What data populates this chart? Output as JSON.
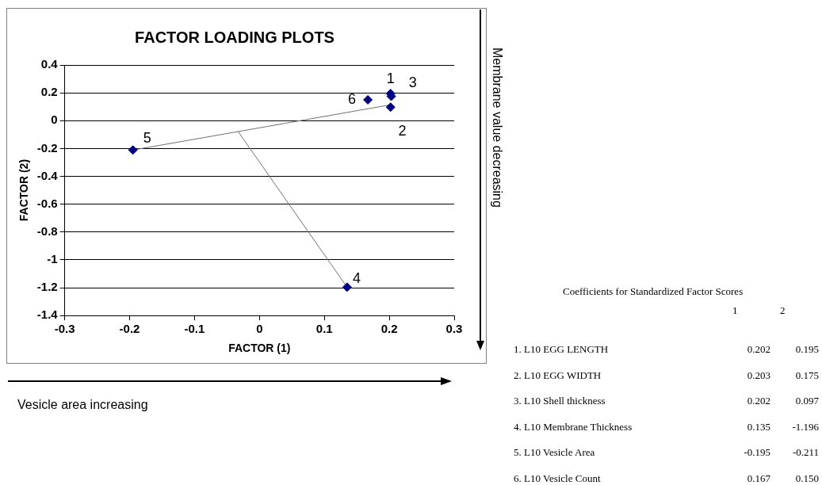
{
  "chart_data": {
    "type": "scatter",
    "title": "FACTOR LOADING PLOTS",
    "xlabel": "FACTOR (1)",
    "ylabel": "FACTOR (2)",
    "xlim": [
      -0.3,
      0.3
    ],
    "xticks": [
      -0.3,
      -0.2,
      -0.1,
      0,
      0.1,
      0.2,
      0.3
    ],
    "ylim": [
      -1.4,
      0.4
    ],
    "yticks": [
      -1.4,
      -1.2,
      -1,
      -0.8,
      -0.6,
      -0.4,
      -0.2,
      0,
      0.2,
      0.4
    ],
    "grid": "y",
    "legend": false,
    "marker": "diamond",
    "series": [
      {
        "color": "#000080",
        "x": [
          0.202,
          0.203,
          0.202,
          0.135,
          -0.195,
          0.167
        ],
        "values": [
          0.195,
          0.175,
          0.097,
          -1.196,
          -0.211,
          0.15
        ]
      },
      {
        "type": "line",
        "color": "#707070",
        "marker": "none",
        "x": [
          -0.195,
          0.202
        ],
        "values": [
          -0.211,
          0.114
        ]
      },
      {
        "type": "line",
        "color": "#707070",
        "marker": "none",
        "x": [
          -0.033,
          0.135
        ],
        "values": [
          -0.077,
          -1.196
        ]
      }
    ],
    "annotations": [
      {
        "text": "1",
        "x": 0.202,
        "y": 0.195
      },
      {
        "text": "2",
        "x": 0.203,
        "y": 0.097
      },
      {
        "text": "3",
        "x": 0.202,
        "y": 0.175
      },
      {
        "text": "4",
        "x": 0.135,
        "y": -1.196
      },
      {
        "text": "5",
        "x": -0.195,
        "y": -0.211
      },
      {
        "text": "6",
        "x": 0.167,
        "y": 0.15
      },
      "Membrane value decreasing",
      "Vesicle area increasing",
      "Coefficients for Standardized  Factor Scores",
      "1",
      "2",
      "1. L10 EGG LENGTH",
      "0.202",
      "0.195",
      "2. L10 EGG WIDTH",
      "0.203",
      "0.175",
      "3. L10 Shell thickness",
      "0.202",
      "0.097",
      "4. L10 Membrane Thickness",
      "0.135",
      "-1.196",
      "5. L10 Vesicle Area",
      "-0.195",
      "-0.211",
      "6. L10 Vesicle Count",
      "0.167",
      "0.150"
    ]
  }
}
